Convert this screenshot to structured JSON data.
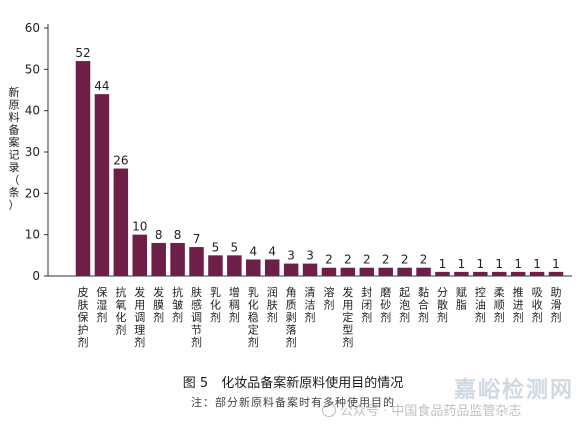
{
  "chart_data": {
    "type": "bar",
    "ylabel": "新原料备案记录（条）",
    "xlabel": "",
    "ylim": [
      0,
      60
    ],
    "yticks": [
      0,
      10,
      20,
      30,
      40,
      50,
      60
    ],
    "grid": false,
    "bar_color": "#6e1f47",
    "categories": [
      "皮肤保护剂",
      "保湿剂",
      "抗氧化剂",
      "发用调理剂",
      "发膜剂",
      "抗皱剂",
      "肤感调节剂",
      "乳化剂",
      "增稠剂",
      "乳化稳定剂",
      "润肤剂",
      "角质剥落剂",
      "清洁剂",
      "溶剂",
      "发用定型剂",
      "封闭剂",
      "磨砂剂",
      "起泡剂",
      "黏合剂",
      "分散剂",
      "赋脂",
      "控油剂",
      "柔顺剂",
      "推进剂",
      "吸收剂",
      "助滑剂"
    ],
    "values": [
      52,
      44,
      26,
      10,
      8,
      8,
      7,
      5,
      5,
      4,
      4,
      3,
      3,
      2,
      2,
      2,
      2,
      2,
      2,
      1,
      1,
      1,
      1,
      1,
      1,
      1
    ]
  },
  "caption": {
    "figure": "图 5　化妆品备案新原料使用目的情况",
    "note": "注：部分新原料备案时有多种使用目的"
  },
  "watermark": {
    "brand": "嘉峪检测网",
    "account": "公众号 · 中国食品药品监管杂志"
  }
}
